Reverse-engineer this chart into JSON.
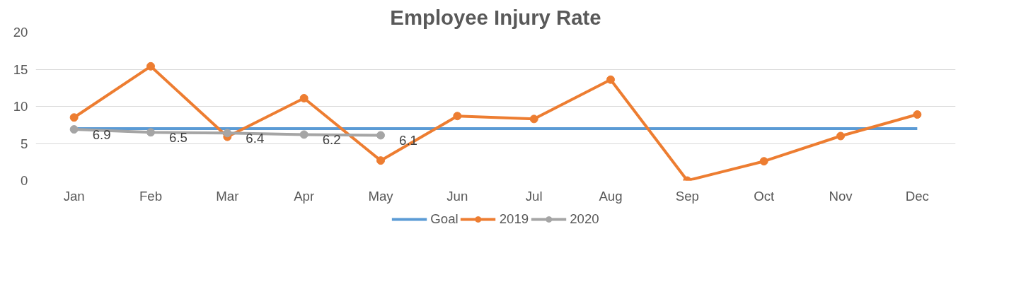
{
  "chart_data": {
    "type": "line",
    "title": "Employee Injury Rate",
    "categories": [
      "Jan",
      "Feb",
      "Mar",
      "Apr",
      "May",
      "Jun",
      "Jul",
      "Aug",
      "Sep",
      "Oct",
      "Nov",
      "Dec"
    ],
    "series": [
      {
        "name": "Goal",
        "color": "#5b9bd5",
        "marker": "none",
        "values": [
          7,
          7,
          7,
          7,
          7,
          7,
          7,
          7,
          7,
          7,
          7,
          7
        ]
      },
      {
        "name": "2019",
        "color": "#ed7d31",
        "marker": "circle",
        "values": [
          8.5,
          15.4,
          5.9,
          11.1,
          2.7,
          8.7,
          8.3,
          13.6,
          0,
          2.6,
          6.0,
          8.9
        ]
      },
      {
        "name": "2020",
        "color": "#a5a5a5",
        "marker": "circle",
        "values": [
          6.9,
          6.5,
          6.4,
          6.2,
          6.1,
          null,
          null,
          null,
          null,
          null,
          null,
          null
        ],
        "value_labels": [
          "6.9",
          "6.5",
          "6.4",
          "6.2",
          "6.1",
          null,
          null,
          null,
          null,
          null,
          null,
          null
        ]
      }
    ],
    "ylim": [
      0,
      20
    ],
    "yticks": [
      0,
      5,
      10,
      15,
      20
    ],
    "grid": "y",
    "legend": "bottom",
    "line_style": "solid"
  }
}
